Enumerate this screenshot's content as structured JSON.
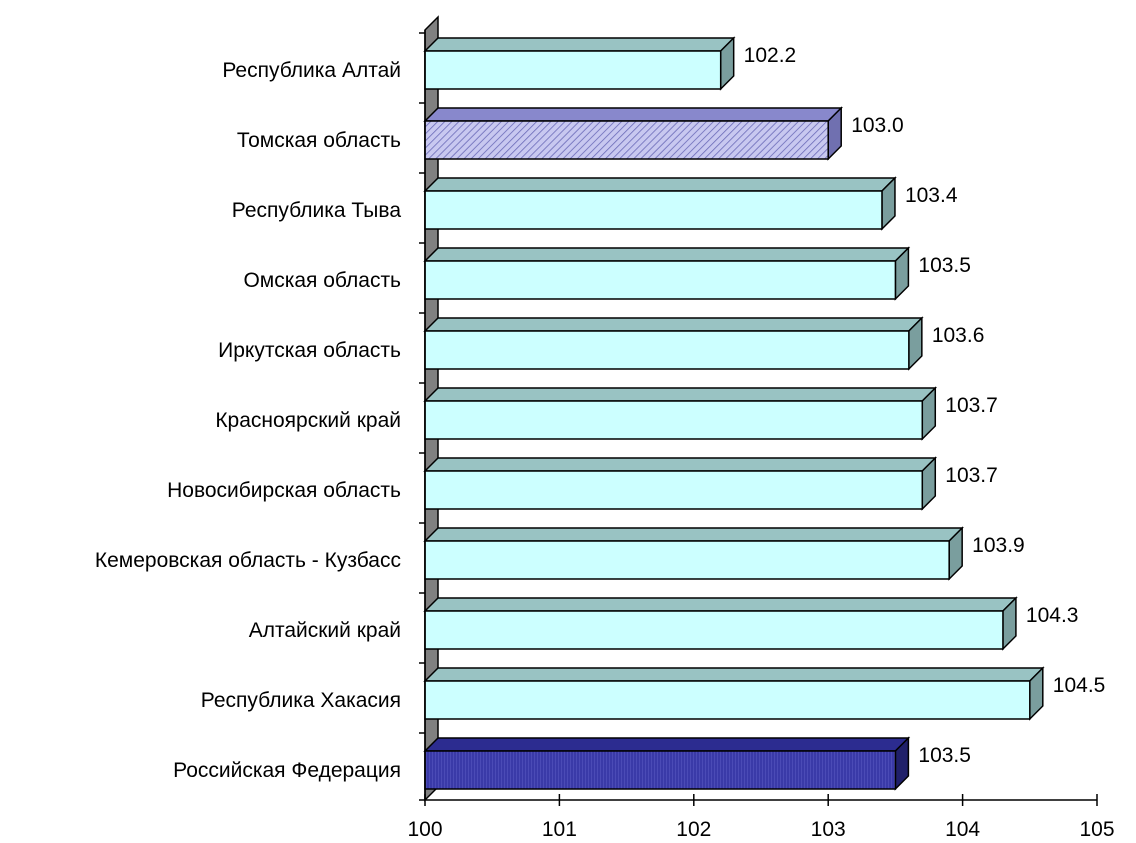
{
  "chart_data": {
    "type": "bar",
    "orientation": "horizontal",
    "categories": [
      "Республика Алтай",
      "Томская область",
      "Республика Тыва",
      "Омская область",
      "Иркутская область",
      "Красноярский край",
      "Новосибирская область",
      "Кемеровская область - Кузбасс",
      "Алтайский край",
      "Республика Хакасия",
      "Российская Федерация"
    ],
    "values": [
      102.2,
      103.0,
      103.4,
      103.5,
      103.6,
      103.7,
      103.7,
      103.9,
      104.3,
      104.5,
      103.5
    ],
    "value_labels": [
      "102.2",
      "103.0",
      "103.4",
      "103.5",
      "103.6",
      "103.7",
      "103.7",
      "103.9",
      "104.3",
      "104.5",
      "103.5"
    ],
    "styles": [
      "light",
      "hatched",
      "light",
      "light",
      "light",
      "light",
      "light",
      "light",
      "light",
      "light",
      "dark"
    ],
    "xlim": [
      100,
      105
    ],
    "xticks": [
      "100",
      "101",
      "102",
      "103",
      "104",
      "105"
    ],
    "title": "",
    "xlabel": "",
    "ylabel": "",
    "grid": false,
    "legend": "none",
    "colors": {
      "light_face": "#ccffff",
      "light_top": "#99c3c3",
      "light_side": "#7a9e9e",
      "hatched_face": "#c8c8f0",
      "hatched_line": "#6a6ab8",
      "hatched_top": "#8888cc",
      "hatched_side": "#7070b0",
      "dark_face": "#3a3aa8",
      "dark_top": "#2c2c90",
      "dark_side": "#20206a",
      "wall": "#808080",
      "outline": "#000000"
    }
  }
}
